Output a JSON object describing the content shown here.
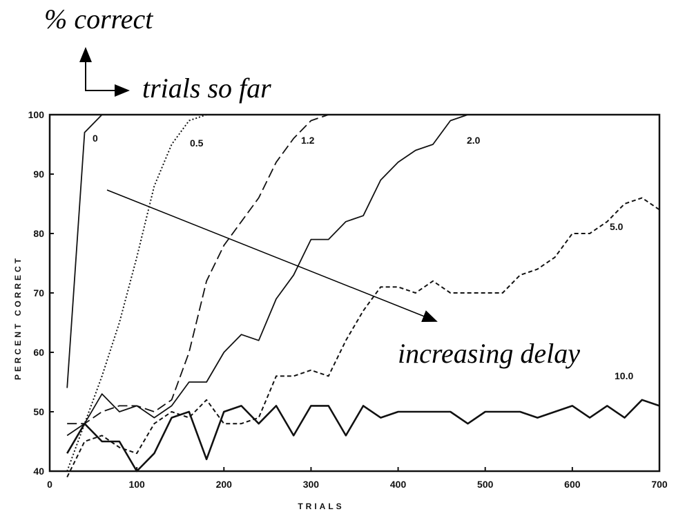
{
  "annotations": {
    "y_note": "% correct",
    "x_note": "trials so far",
    "delay_note": "increasing delay"
  },
  "chart_data": {
    "type": "line",
    "xlabel": "TRIALS",
    "ylabel": "PERCENT CORRECT",
    "xlim": [
      0,
      700
    ],
    "ylim": [
      40,
      100
    ],
    "xticks": [
      0,
      100,
      200,
      300,
      400,
      500,
      600,
      700
    ],
    "yticks": [
      40,
      50,
      60,
      70,
      80,
      90,
      100
    ],
    "grid": false,
    "legend": "inline labels",
    "series": [
      {
        "name": "0",
        "style": "solid",
        "x": [
          20,
          40,
          60
        ],
        "y": [
          54,
          97,
          100
        ]
      },
      {
        "name": "0.5",
        "style": "dotted",
        "x": [
          20,
          40,
          60,
          80,
          100,
          120,
          140,
          160,
          180,
          200
        ],
        "y": [
          40,
          48,
          56,
          65,
          76,
          88,
          95,
          99,
          100,
          100
        ]
      },
      {
        "name": "1.2",
        "style": "long-dash",
        "x": [
          20,
          40,
          60,
          80,
          100,
          120,
          140,
          160,
          180,
          200,
          220,
          240,
          260,
          280,
          300,
          320
        ],
        "y": [
          48,
          48,
          50,
          51,
          51,
          50,
          52,
          60,
          72,
          78,
          82,
          86,
          92,
          96,
          99,
          100
        ]
      },
      {
        "name": "2.0",
        "style": "solid",
        "x": [
          20,
          40,
          60,
          80,
          100,
          120,
          140,
          160,
          180,
          200,
          220,
          240,
          260,
          280,
          300,
          320,
          340,
          360,
          380,
          400,
          420,
          440,
          460,
          480,
          500,
          520
        ],
        "y": [
          46,
          48,
          53,
          50,
          51,
          49,
          51,
          55,
          55,
          60,
          63,
          62,
          69,
          73,
          79,
          79,
          82,
          83,
          89,
          92,
          94,
          95,
          99,
          100,
          100,
          100
        ]
      },
      {
        "name": "5.0",
        "style": "short-dash",
        "x": [
          20,
          40,
          60,
          80,
          100,
          120,
          140,
          160,
          180,
          200,
          220,
          240,
          260,
          280,
          300,
          320,
          340,
          360,
          380,
          400,
          420,
          440,
          460,
          480,
          500,
          520,
          540,
          560,
          580,
          600,
          620,
          640,
          660,
          680,
          700
        ],
        "y": [
          39,
          45,
          46,
          44,
          43,
          48,
          50,
          49,
          52,
          48,
          48,
          49,
          56,
          56,
          57,
          56,
          62,
          67,
          71,
          71,
          70,
          72,
          70,
          70,
          70,
          70,
          73,
          74,
          76,
          80,
          80,
          82,
          85,
          86,
          84
        ]
      },
      {
        "name": "10.0",
        "style": "solid-thick",
        "x": [
          20,
          40,
          60,
          80,
          100,
          120,
          140,
          160,
          180,
          200,
          220,
          240,
          260,
          280,
          300,
          320,
          340,
          360,
          380,
          400,
          420,
          440,
          460,
          480,
          500,
          520,
          540,
          560,
          580,
          600,
          620,
          640,
          660,
          680,
          700
        ],
        "y": [
          43,
          48,
          45,
          45,
          40,
          43,
          49,
          50,
          42,
          50,
          51,
          48,
          51,
          46,
          51,
          51,
          46,
          51,
          49,
          50,
          50,
          50,
          50,
          48,
          50,
          50,
          50,
          49,
          50,
          51,
          49,
          51,
          49,
          52,
          51
        ]
      }
    ]
  }
}
